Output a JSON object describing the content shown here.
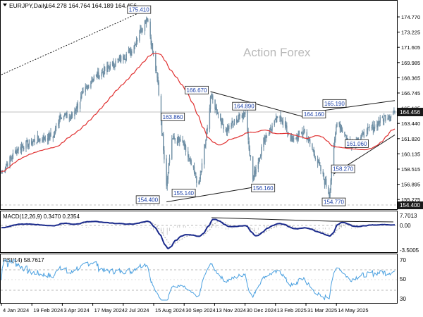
{
  "header": {
    "symbol_label": "EURJPY,Daily",
    "ohlc": "164.278 164.764 164.189 164.456"
  },
  "watermark": "Action Forex",
  "colors": {
    "candle": "#6f8fa5",
    "sma": "#e03030",
    "trendline": "#1a1a1a",
    "annotation_text": "#1a3fa8",
    "macd": "#1a2a8c",
    "macd_signal": "#aaaaaa",
    "rsi": "#4aa0e0",
    "grid_dash": "#b8b8b8",
    "price_tag_bg": "#1a1a1a"
  },
  "main_axis": {
    "ticks": [
      "174.770",
      "173.225",
      "171.605",
      "169.985",
      "168.365",
      "166.745",
      "165.125",
      "163.440",
      "161.820",
      "160.135",
      "158.515",
      "156.895",
      "155.275"
    ],
    "current_price_tag": "164.456",
    "low_price_tag": "154.400"
  },
  "macd": {
    "label": "MACD(12,26,9) 0.3470 0.2354",
    "ticks": [
      "7.7013",
      "0.00",
      "-3.5005"
    ]
  },
  "rsi": {
    "label": "RSI(14) 58.7617",
    "ticks": [
      "70",
      "50",
      "30"
    ]
  },
  "x_axis": {
    "labels": [
      "4 Jan 2024",
      "19 Feb 2024",
      "3 Apr 2024",
      "17 May 2024",
      "2 Jul 2024",
      "15 Aug 2024",
      "30 Sep 2024",
      "13 Nov 2024",
      "30 Dec 2024",
      "13 Feb 2025",
      "31 Mar 2025",
      "14 May 2025"
    ]
  },
  "chart_data": {
    "type": "candlestick",
    "symbol": "EURJPY",
    "timeframe": "Daily",
    "ylim": [
      154.0,
      176.2
    ],
    "annotations": [
      {
        "label": "175.410",
        "date": "2024-07-11",
        "value": 175.41
      },
      {
        "label": "163.860",
        "date": "2024-07-31",
        "value": 163.86
      },
      {
        "label": "155.140",
        "date": "2024-08-15",
        "value": 155.14
      },
      {
        "label": "154.400",
        "date": "2024-08-05",
        "value": 154.4
      },
      {
        "label": "166.670",
        "date": "2024-10-01",
        "value": 166.67
      },
      {
        "label": "164.890",
        "date": "2024-11-15",
        "value": 164.89
      },
      {
        "label": "156.160",
        "date": "2024-11-25",
        "value": 156.16
      },
      {
        "label": "164.160",
        "date": "2025-01-30",
        "value": 164.16
      },
      {
        "label": "154.770",
        "date": "2025-03-04",
        "value": 154.77
      },
      {
        "label": "158.270",
        "date": "2025-03-05",
        "value": 158.27
      },
      {
        "label": "165.190",
        "date": "2025-03-14",
        "value": 165.19
      },
      {
        "label": "161.060",
        "date": "2025-04-21",
        "value": 161.06
      }
    ],
    "price_path": [
      [
        "2024-01-04",
        157.8
      ],
      [
        "2024-01-25",
        160.4
      ],
      [
        "2024-02-19",
        161.4
      ],
      [
        "2024-03-12",
        161.8
      ],
      [
        "2024-03-20",
        164.2
      ],
      [
        "2024-04-03",
        163.8
      ],
      [
        "2024-04-29",
        168.0
      ],
      [
        "2024-05-17",
        169.0
      ],
      [
        "2024-06-20",
        171.2
      ],
      [
        "2024-07-11",
        175.0
      ],
      [
        "2024-07-25",
        167.5
      ],
      [
        "2024-08-05",
        156.6
      ],
      [
        "2024-08-12",
        161.5
      ],
      [
        "2024-08-26",
        161.0
      ],
      [
        "2024-09-16",
        156.3
      ],
      [
        "2024-09-27",
        162.5
      ],
      [
        "2024-10-01",
        166.2
      ],
      [
        "2024-10-21",
        162.4
      ],
      [
        "2024-11-15",
        164.5
      ],
      [
        "2024-11-25",
        157.0
      ],
      [
        "2024-12-10",
        161.6
      ],
      [
        "2024-12-30",
        164.0
      ],
      [
        "2025-01-15",
        161.2
      ],
      [
        "2025-01-30",
        162.4
      ],
      [
        "2025-02-13",
        159.8
      ],
      [
        "2025-03-04",
        155.4
      ],
      [
        "2025-03-14",
        163.6
      ],
      [
        "2025-03-31",
        160.8
      ],
      [
        "2025-04-21",
        162.2
      ],
      [
        "2025-05-14",
        163.8
      ],
      [
        "2025-05-28",
        164.456
      ]
    ],
    "trendlines": [
      {
        "from": [
          "2023-12-15",
          167.8
        ],
        "to": [
          "2024-07-11",
          175.8
        ],
        "style": "dotted"
      },
      {
        "from": [
          "2024-08-05",
          154.5
        ],
        "to": [
          "2024-11-25",
          156.1
        ],
        "style": "solid"
      },
      {
        "from": [
          "2024-10-01",
          166.7
        ],
        "to": [
          "2025-01-30",
          163.9
        ],
        "style": "solid"
      },
      {
        "from": [
          "2025-01-30",
          164.3
        ],
        "to": [
          "2025-05-28",
          165.7
        ],
        "style": "solid"
      },
      {
        "from": [
          "2025-03-10",
          157.6
        ],
        "to": [
          "2025-05-28",
          161.9
        ],
        "style": "solid"
      }
    ],
    "series": [
      {
        "name": "MACD(12,26,9)",
        "value": 0.347
      },
      {
        "name": "RSI(14)",
        "value": 58.7617
      }
    ]
  }
}
